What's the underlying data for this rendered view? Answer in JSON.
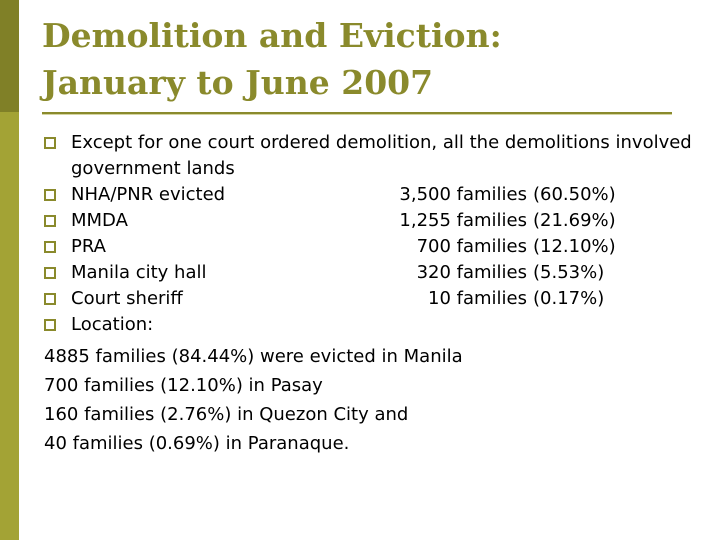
{
  "slide": {
    "title_line1": "Demolition and Eviction:",
    "title_line2": "January to June 2007",
    "accent_color": "#8a8a2c",
    "sidebar_color": "#a3a335"
  },
  "bullets": {
    "intro": "Except for one court ordered demolition, all the demolitions involved government lands",
    "evictors": [
      {
        "label": "NHA/PNR evicted",
        "families": "3,500 families",
        "percent": "(60.50%)"
      },
      {
        "label": "MMDA",
        "families": "1,255 families",
        "percent": "(21.69%)"
      },
      {
        "label": "PRA",
        "families": "700 families",
        "percent": "(12.10%)"
      },
      {
        "label": "Manila city hall",
        "families": "320 families",
        "percent": "(5.53%)"
      },
      {
        "label": "Court sheriff",
        "families": "10 families",
        "percent": "(0.17%)"
      }
    ],
    "location_label": "Location:"
  },
  "locations": [
    "4885 families (84.44%) were evicted in Manila",
    "700 families (12.10%) in Pasay",
    "160 families (2.76%) in Quezon City and",
    "40 families (0.69%) in Paranaque."
  ],
  "icons": {
    "bullet": "hollow-square-bullet-icon"
  }
}
